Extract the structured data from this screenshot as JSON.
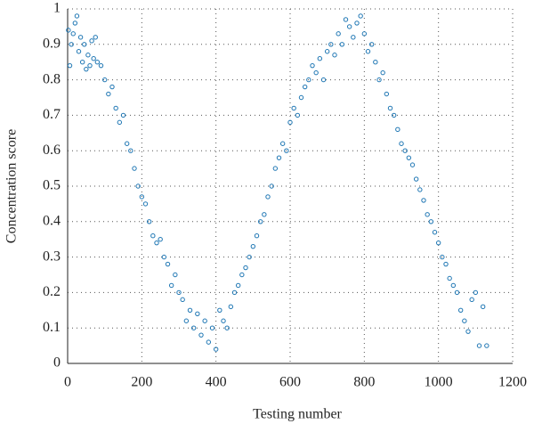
{
  "chart_data": {
    "type": "scatter",
    "xlabel": "Testing number",
    "ylabel": "Concentration score",
    "x": [
      2,
      6,
      10,
      15,
      20,
      25,
      30,
      35,
      40,
      45,
      50,
      55,
      60,
      65,
      70,
      75,
      80,
      90,
      100,
      110,
      120,
      130,
      140,
      150,
      160,
      170,
      180,
      190,
      200,
      210,
      220,
      230,
      240,
      250,
      260,
      270,
      280,
      290,
      300,
      310,
      320,
      330,
      340,
      350,
      360,
      370,
      380,
      390,
      400,
      410,
      420,
      430,
      440,
      450,
      460,
      470,
      480,
      490,
      500,
      510,
      520,
      530,
      540,
      550,
      560,
      570,
      580,
      590,
      600,
      610,
      620,
      630,
      640,
      650,
      660,
      670,
      680,
      690,
      700,
      710,
      720,
      730,
      740,
      750,
      760,
      770,
      780,
      790,
      800,
      810,
      820,
      830,
      840,
      850,
      860,
      870,
      880,
      890,
      900,
      910,
      920,
      930,
      940,
      950,
      960,
      970,
      980,
      990,
      1000,
      1010,
      1020,
      1030,
      1040,
      1050,
      1060,
      1070,
      1080,
      1090,
      1100,
      1110,
      1120,
      1130
    ],
    "values": [
      0.94,
      0.84,
      0.9,
      0.93,
      0.96,
      0.98,
      0.88,
      0.92,
      0.85,
      0.9,
      0.83,
      0.87,
      0.84,
      0.91,
      0.86,
      0.92,
      0.85,
      0.84,
      0.8,
      0.76,
      0.78,
      0.72,
      0.68,
      0.7,
      0.62,
      0.6,
      0.55,
      0.5,
      0.47,
      0.45,
      0.4,
      0.36,
      0.34,
      0.35,
      0.3,
      0.28,
      0.22,
      0.25,
      0.2,
      0.18,
      0.12,
      0.15,
      0.1,
      0.14,
      0.08,
      0.12,
      0.06,
      0.1,
      0.04,
      0.15,
      0.12,
      0.1,
      0.16,
      0.2,
      0.22,
      0.25,
      0.27,
      0.3,
      0.33,
      0.36,
      0.4,
      0.42,
      0.47,
      0.5,
      0.55,
      0.58,
      0.62,
      0.6,
      0.68,
      0.72,
      0.7,
      0.75,
      0.78,
      0.8,
      0.84,
      0.82,
      0.86,
      0.8,
      0.88,
      0.9,
      0.87,
      0.93,
      0.9,
      0.97,
      0.95,
      0.92,
      0.96,
      0.98,
      0.93,
      0.88,
      0.9,
      0.85,
      0.8,
      0.82,
      0.76,
      0.72,
      0.7,
      0.66,
      0.62,
      0.6,
      0.58,
      0.56,
      0.52,
      0.49,
      0.46,
      0.42,
      0.4,
      0.37,
      0.34,
      0.3,
      0.28,
      0.24,
      0.22,
      0.2,
      0.15,
      0.12,
      0.09,
      0.18,
      0.2,
      0.05,
      0.16,
      0.05
    ],
    "color": "#1f77b4",
    "xlim": [
      0,
      1200
    ],
    "xticks": [
      0,
      200,
      400,
      600,
      800,
      1000,
      1200
    ],
    "ylim": [
      0,
      1
    ],
    "yticks": [
      0,
      0.1,
      0.2,
      0.3,
      0.4,
      0.5,
      0.6,
      0.7,
      0.8,
      0.9,
      1
    ],
    "grid": true
  }
}
